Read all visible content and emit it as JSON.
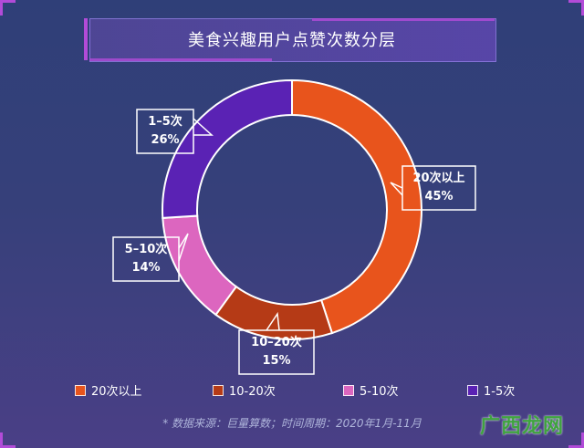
{
  "chart_data": {
    "type": "pie",
    "title": "美食兴趣用户点赞次数分层",
    "categories": [
      "20次以上",
      "10-20次",
      "5-10次",
      "1-5次"
    ],
    "values": [
      45,
      15,
      14,
      26
    ],
    "value_labels": [
      "45%",
      "15%",
      "14%",
      "26%"
    ],
    "callout_labels": [
      "20次以上",
      "10–20次",
      "5–10次",
      "1–5次"
    ],
    "colors": [
      "#e8541c",
      "#b53a16",
      "#dc66bf",
      "#5a22b4"
    ],
    "legend_position": "bottom",
    "donut": true
  },
  "source_note": "* 数据来源：巨量算数；时间周期：2020年1月-11月",
  "watermark_text": "广西龙网"
}
